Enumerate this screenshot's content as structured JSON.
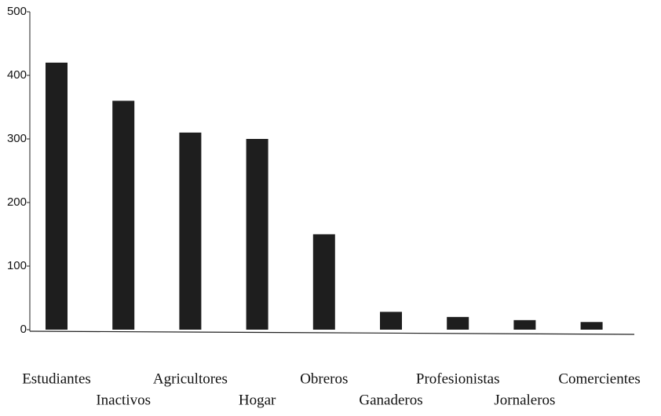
{
  "chart_data": {
    "type": "bar",
    "categories": [
      "Estudiantes",
      "Inactivos",
      "Agricultores",
      "Hogar",
      "Obreros",
      "Ganaderos",
      "Profesionistas",
      "Jornaleros",
      "Comercientes"
    ],
    "values": [
      420,
      360,
      310,
      300,
      150,
      28,
      20,
      15,
      12
    ],
    "color": "#1e1e1e",
    "ylim": [
      0,
      500
    ],
    "yticks": [
      0,
      100,
      200,
      300,
      400,
      500
    ],
    "grid": false
  }
}
